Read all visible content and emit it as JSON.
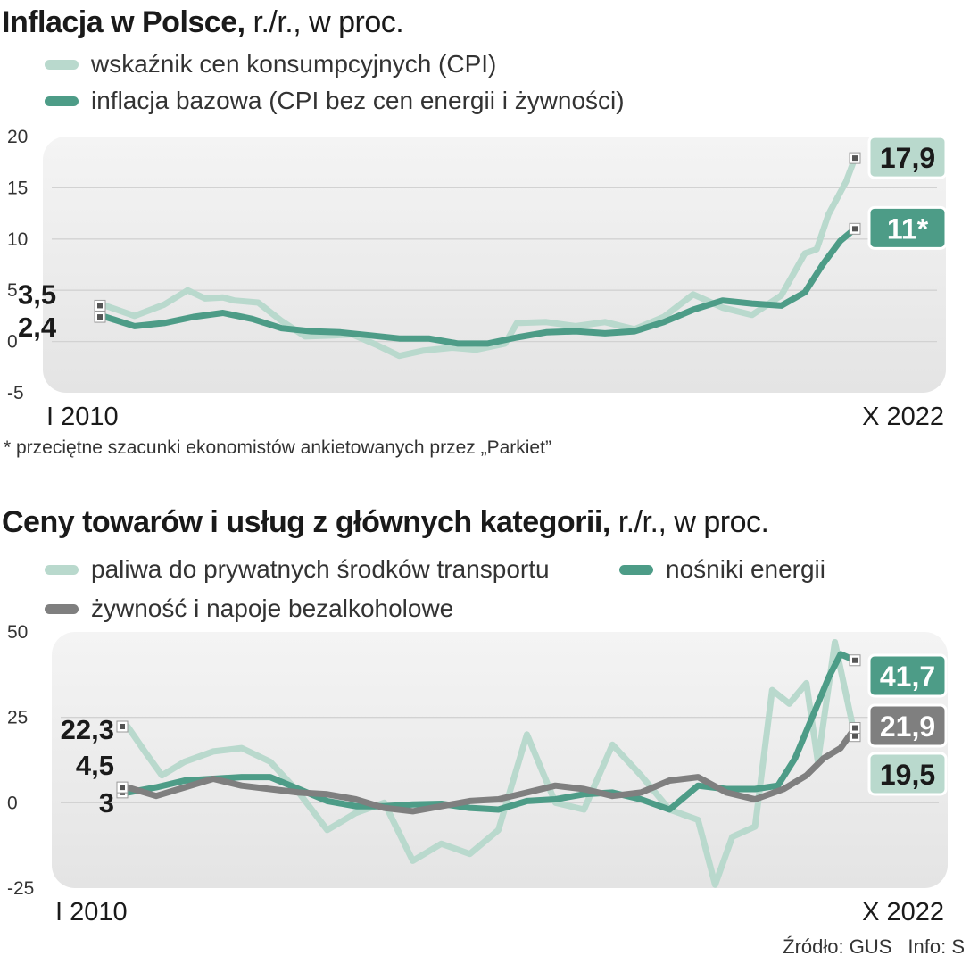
{
  "chart_data": [
    {
      "type": "line",
      "title": "Inflacja w Polsce,",
      "subtitle": "r./r., w proc.",
      "x_start_label": "I 2010",
      "x_end_label": "X 2022",
      "ylim": [
        -5,
        20
      ],
      "yticks": [
        "-5",
        "0",
        "5",
        "10",
        "15",
        "20"
      ],
      "ytick_values": [
        -5,
        0,
        5,
        10,
        15,
        20
      ],
      "grid": true,
      "legend_placement": "top-left",
      "footnote": "* przeciętne szacunki ekonomistów ankietowanych przez „Parkiet”",
      "series": [
        {
          "name": "wskaźnik cen konsumpcyjnych (CPI)",
          "color": "#b9d9cd",
          "start_label": "3,5",
          "end_label": "17,9",
          "end_value": 17.9,
          "points": [
            [
              2010.0,
              3.5
            ],
            [
              2010.5,
              2.5
            ],
            [
              2011.0,
              3.6
            ],
            [
              2011.4,
              5.0
            ],
            [
              2011.7,
              4.2
            ],
            [
              2012.0,
              4.3
            ],
            [
              2012.2,
              4.0
            ],
            [
              2012.6,
              3.8
            ],
            [
              2013.0,
              2.0
            ],
            [
              2013.4,
              0.5
            ],
            [
              2013.9,
              0.6
            ],
            [
              2014.2,
              0.7
            ],
            [
              2014.6,
              -0.3
            ],
            [
              2015.0,
              -1.4
            ],
            [
              2015.4,
              -0.9
            ],
            [
              2015.9,
              -0.6
            ],
            [
              2016.3,
              -0.8
            ],
            [
              2016.8,
              -0.2
            ],
            [
              2017.0,
              1.8
            ],
            [
              2017.5,
              1.9
            ],
            [
              2018.0,
              1.5
            ],
            [
              2018.5,
              1.9
            ],
            [
              2019.0,
              1.2
            ],
            [
              2019.5,
              2.4
            ],
            [
              2020.0,
              4.6
            ],
            [
              2020.5,
              3.3
            ],
            [
              2021.0,
              2.6
            ],
            [
              2021.5,
              4.5
            ],
            [
              2021.9,
              8.6
            ],
            [
              2022.1,
              9.0
            ],
            [
              2022.3,
              12.4
            ],
            [
              2022.6,
              15.6
            ],
            [
              2022.75,
              17.9
            ]
          ]
        },
        {
          "name": "inflacja bazowa (CPI bez cen energii i żywności)",
          "color": "#4d9c87",
          "start_label": "2,4",
          "end_label": "11*",
          "end_value": 11.0,
          "points": [
            [
              2010.0,
              2.4
            ],
            [
              2010.5,
              1.5
            ],
            [
              2011.0,
              1.8
            ],
            [
              2011.5,
              2.4
            ],
            [
              2012.0,
              2.8
            ],
            [
              2012.5,
              2.2
            ],
            [
              2013.0,
              1.3
            ],
            [
              2013.5,
              1.0
            ],
            [
              2014.0,
              0.9
            ],
            [
              2014.5,
              0.6
            ],
            [
              2015.0,
              0.3
            ],
            [
              2015.5,
              0.3
            ],
            [
              2016.0,
              -0.2
            ],
            [
              2016.5,
              -0.2
            ],
            [
              2017.0,
              0.4
            ],
            [
              2017.5,
              0.9
            ],
            [
              2018.0,
              1.0
            ],
            [
              2018.5,
              0.8
            ],
            [
              2019.0,
              1.0
            ],
            [
              2019.5,
              1.9
            ],
            [
              2020.0,
              3.1
            ],
            [
              2020.5,
              4.0
            ],
            [
              2021.0,
              3.7
            ],
            [
              2021.5,
              3.5
            ],
            [
              2021.9,
              4.8
            ],
            [
              2022.2,
              7.5
            ],
            [
              2022.5,
              9.8
            ],
            [
              2022.75,
              11.0
            ]
          ]
        }
      ]
    },
    {
      "type": "line",
      "title": "Ceny towarów i usług z głównych kategorii,",
      "subtitle": "r./r., w proc.",
      "x_start_label": "I 2010",
      "x_end_label": "X 2022",
      "ylim": [
        -25,
        50
      ],
      "yticks": [
        "-25",
        "0",
        "25",
        "50"
      ],
      "ytick_values": [
        -25,
        0,
        25,
        50
      ],
      "grid": true,
      "legend_placement": "top-left",
      "series": [
        {
          "name": "paliwa do prywatnych środków transportu",
          "color": "#b9d9cd",
          "start_label": "22,3",
          "end_label": "19,5",
          "end_value": 19.5,
          "points": [
            [
              2010.0,
              22.3
            ],
            [
              2010.3,
              15.0
            ],
            [
              2010.6,
              8.0
            ],
            [
              2011.0,
              12.0
            ],
            [
              2011.5,
              15.0
            ],
            [
              2012.0,
              16.0
            ],
            [
              2012.5,
              12.0
            ],
            [
              2013.0,
              3.0
            ],
            [
              2013.5,
              -8.0
            ],
            [
              2014.0,
              -3.0
            ],
            [
              2014.5,
              0.0
            ],
            [
              2015.0,
              -17.0
            ],
            [
              2015.5,
              -12.0
            ],
            [
              2016.0,
              -15.0
            ],
            [
              2016.5,
              -8.0
            ],
            [
              2017.0,
              20.0
            ],
            [
              2017.5,
              0.0
            ],
            [
              2018.0,
              -2.0
            ],
            [
              2018.5,
              17.0
            ],
            [
              2019.0,
              8.0
            ],
            [
              2019.5,
              -2.0
            ],
            [
              2020.0,
              -5.0
            ],
            [
              2020.3,
              -24.0
            ],
            [
              2020.6,
              -10.0
            ],
            [
              2021.0,
              -7.0
            ],
            [
              2021.3,
              33.0
            ],
            [
              2021.6,
              29.0
            ],
            [
              2021.9,
              35.0
            ],
            [
              2022.1,
              12.0
            ],
            [
              2022.4,
              47.0
            ],
            [
              2022.75,
              19.5
            ]
          ]
        },
        {
          "name": "nośniki energii",
          "color": "#4d9c87",
          "start_label": "3",
          "end_label": "41,7",
          "end_value": 41.7,
          "points": [
            [
              2010.0,
              3.0
            ],
            [
              2010.5,
              4.5
            ],
            [
              2011.0,
              6.5
            ],
            [
              2011.5,
              7.0
            ],
            [
              2012.0,
              7.5
            ],
            [
              2012.5,
              7.5
            ],
            [
              2013.0,
              4.0
            ],
            [
              2013.5,
              0.5
            ],
            [
              2014.0,
              -1.0
            ],
            [
              2014.5,
              -1.0
            ],
            [
              2015.0,
              -0.5
            ],
            [
              2015.5,
              -0.3
            ],
            [
              2016.0,
              -1.5
            ],
            [
              2016.5,
              -2.0
            ],
            [
              2017.0,
              0.5
            ],
            [
              2017.5,
              1.0
            ],
            [
              2018.0,
              2.5
            ],
            [
              2018.5,
              3.0
            ],
            [
              2019.0,
              1.0
            ],
            [
              2019.5,
              -2.0
            ],
            [
              2020.0,
              5.0
            ],
            [
              2020.5,
              4.0
            ],
            [
              2021.0,
              4.0
            ],
            [
              2021.4,
              5.0
            ],
            [
              2021.7,
              13.0
            ],
            [
              2022.0,
              25.0
            ],
            [
              2022.3,
              37.0
            ],
            [
              2022.5,
              43.5
            ],
            [
              2022.75,
              41.7
            ]
          ]
        },
        {
          "name": "żywność i napoje bezalkoholowe",
          "color": "#7f7f7f",
          "start_label": "4,5",
          "end_label": "21,9",
          "end_value": 21.9,
          "points": [
            [
              2010.0,
              4.5
            ],
            [
              2010.5,
              2.0
            ],
            [
              2011.0,
              4.5
            ],
            [
              2011.5,
              7.0
            ],
            [
              2012.0,
              5.0
            ],
            [
              2012.5,
              4.0
            ],
            [
              2013.0,
              3.0
            ],
            [
              2013.5,
              2.5
            ],
            [
              2014.0,
              1.0
            ],
            [
              2014.5,
              -1.5
            ],
            [
              2015.0,
              -2.5
            ],
            [
              2015.5,
              -1.0
            ],
            [
              2016.0,
              0.5
            ],
            [
              2016.5,
              1.0
            ],
            [
              2017.0,
              3.0
            ],
            [
              2017.5,
              5.0
            ],
            [
              2018.0,
              4.0
            ],
            [
              2018.5,
              2.0
            ],
            [
              2019.0,
              3.0
            ],
            [
              2019.5,
              6.5
            ],
            [
              2020.0,
              7.5
            ],
            [
              2020.5,
              3.0
            ],
            [
              2021.0,
              1.0
            ],
            [
              2021.5,
              4.0
            ],
            [
              2021.9,
              8.0
            ],
            [
              2022.2,
              13.0
            ],
            [
              2022.5,
              16.0
            ],
            [
              2022.75,
              21.9
            ]
          ]
        }
      ]
    }
  ],
  "source": "Źródło: GUS",
  "info": "Info: S"
}
